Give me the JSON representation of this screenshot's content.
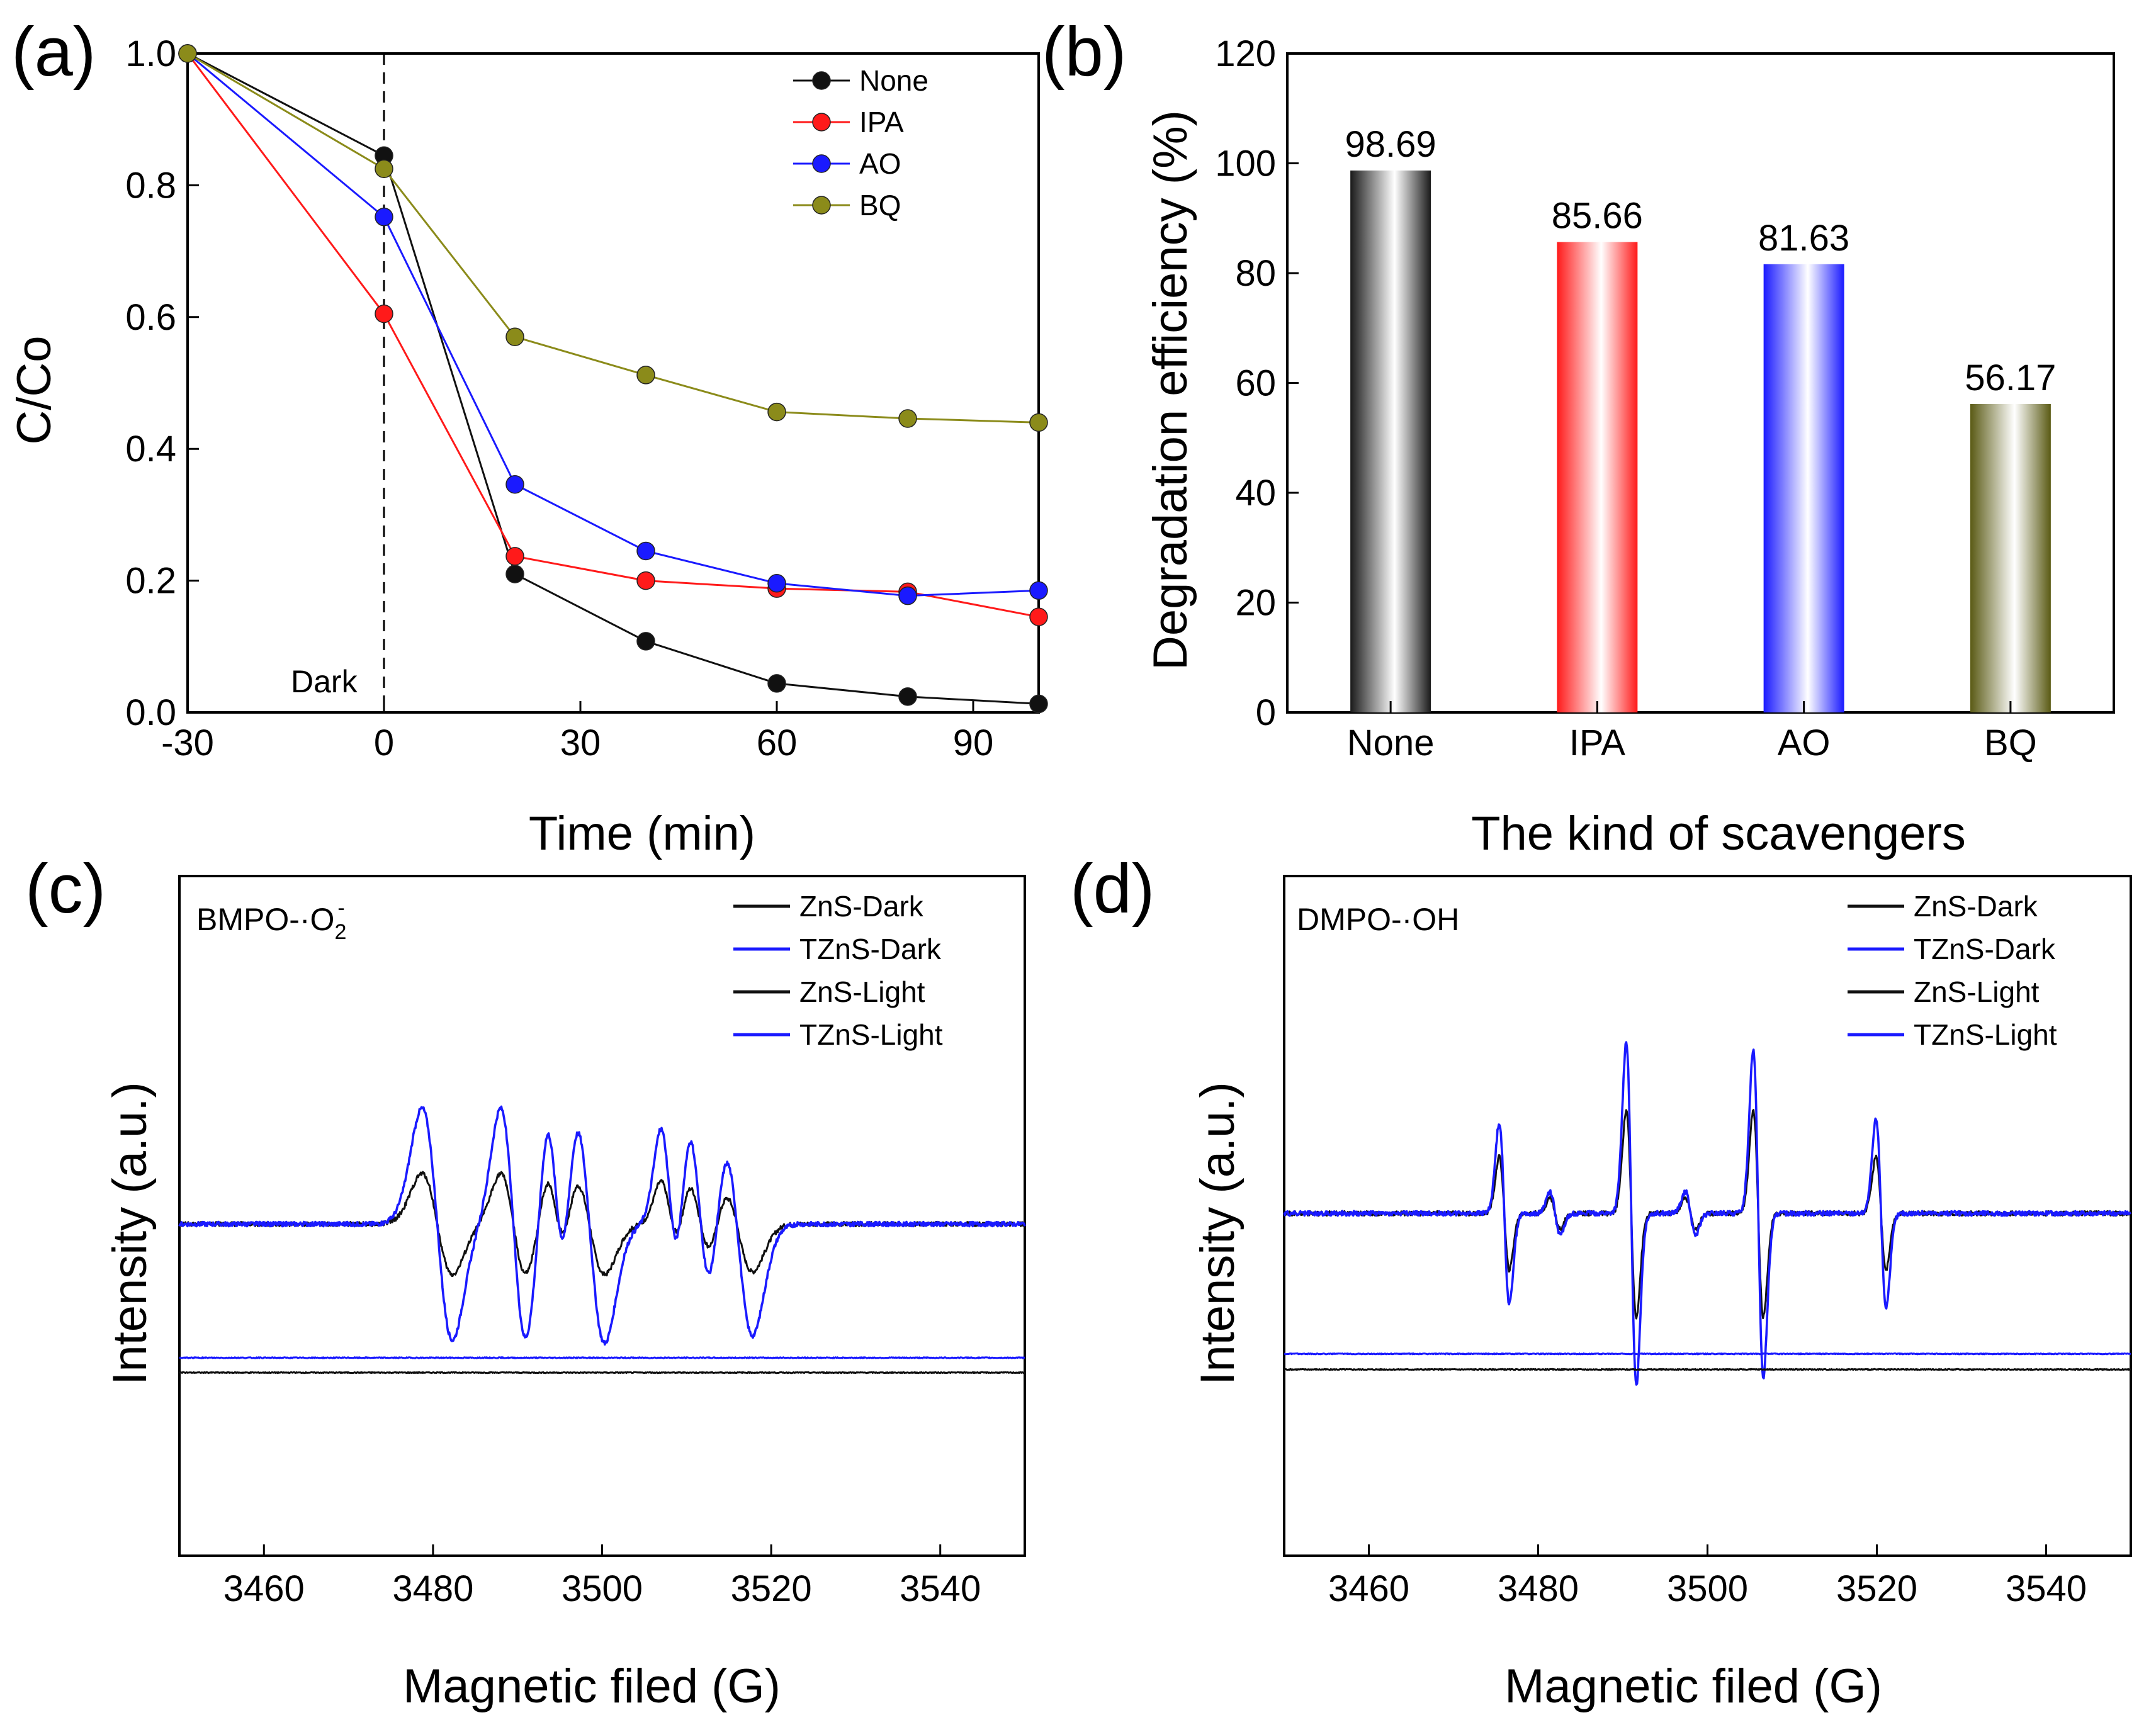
{
  "chart_data": [
    {
      "id": "a",
      "panel_label": "(a)",
      "type": "line",
      "xlabel": "Time (min)",
      "ylabel": "C/Co",
      "xlim": [
        -30,
        100
      ],
      "ylim": [
        0.0,
        1.0
      ],
      "xticks": [
        -30,
        0,
        30,
        60,
        90
      ],
      "xtick_labels": [
        "-30",
        "0",
        "30",
        "60",
        "90"
      ],
      "yticks": [
        0.0,
        0.2,
        0.4,
        0.6,
        0.8,
        1.0
      ],
      "ytick_labels": [
        "0.0",
        "0.2",
        "0.4",
        "0.6",
        "0.8",
        "1.0"
      ],
      "annotation": {
        "text": "Dark",
        "x": 0
      },
      "x": [
        -30,
        0,
        20,
        40,
        60,
        80,
        100
      ],
      "series": [
        {
          "name": "None",
          "color": "#111111",
          "values": [
            1.0,
            0.845,
            0.21,
            0.108,
            0.044,
            0.024,
            0.013
          ]
        },
        {
          "name": "IPA",
          "color": "#ff1a1a",
          "values": [
            1.0,
            0.605,
            0.237,
            0.2,
            0.188,
            0.183,
            0.145
          ]
        },
        {
          "name": "AO",
          "color": "#1a1aff",
          "values": [
            1.0,
            0.752,
            0.346,
            0.245,
            0.196,
            0.177,
            0.185
          ]
        },
        {
          "name": "BQ",
          "color": "#8b8b1a",
          "values": [
            1.0,
            0.825,
            0.57,
            0.512,
            0.456,
            0.446,
            0.44
          ]
        }
      ]
    },
    {
      "id": "b",
      "panel_label": "(b)",
      "type": "bar",
      "xlabel": "The kind of scavengers",
      "ylabel": "Degradation efficiency (%)",
      "ylim": [
        0,
        120
      ],
      "yticks": [
        0,
        20,
        40,
        60,
        80,
        100,
        120
      ],
      "ytick_labels": [
        "0",
        "20",
        "40",
        "60",
        "80",
        "100",
        "120"
      ],
      "categories": [
        "None",
        "IPA",
        "AO",
        "BQ"
      ],
      "values": [
        98.69,
        85.66,
        81.63,
        56.17
      ],
      "value_labels": [
        "98.69",
        "85.66",
        "81.63",
        "56.17"
      ],
      "colors": [
        "#1a1a1a",
        "#ff1a1a",
        "#1a1aff",
        "#5a5a14"
      ]
    },
    {
      "id": "c",
      "panel_label": "(c)",
      "type": "line",
      "xlabel": "Magnetic filed (G)",
      "ylabel": "Intensity (a.u.)",
      "xlim": [
        3450,
        3550
      ],
      "xticks": [
        3460,
        3480,
        3500,
        3520,
        3540
      ],
      "xtick_labels": [
        "3460",
        "3480",
        "3500",
        "3520",
        "3540"
      ],
      "note": {
        "main": "BMPO-·O",
        "sub": "2",
        "sup": "-"
      },
      "spin_adduct": "BMPO-O2",
      "series": [
        {
          "name": "ZnS-Dark",
          "color": "#111111",
          "baseline": -1.0,
          "peaks": []
        },
        {
          "name": "TZnS-Dark",
          "color": "#1a1aff",
          "baseline": -0.9,
          "peaks": []
        },
        {
          "name": "ZnS-Light",
          "color": "#111111",
          "baseline": 0.0,
          "peaks": [
            {
              "center": 3480.5,
              "amplitude": 0.34,
              "width": 1.8
            },
            {
              "center": 3489.5,
              "amplitude": 0.34,
              "width": 1.5
            },
            {
              "center": 3494.5,
              "amplitude": 0.28,
              "width": 1.1
            },
            {
              "center": 3498.5,
              "amplitude": 0.34,
              "width": 1.8
            },
            {
              "center": 3508.0,
              "amplitude": 0.27,
              "width": 1.1
            },
            {
              "center": 3511.5,
              "amplitude": 0.34,
              "width": 1.5
            },
            {
              "center": 3516.0,
              "amplitude": 0.32,
              "width": 1.8
            }
          ]
        },
        {
          "name": "TZnS-Light",
          "color": "#1a1aff",
          "baseline": 0.0,
          "peaks": [
            {
              "center": 3480.5,
              "amplitude": 0.78,
              "width": 1.8
            },
            {
              "center": 3489.5,
              "amplitude": 0.78,
              "width": 1.5
            },
            {
              "center": 3494.5,
              "amplitude": 0.62,
              "width": 1.1
            },
            {
              "center": 3498.5,
              "amplitude": 0.8,
              "width": 1.8
            },
            {
              "center": 3508.0,
              "amplitude": 0.6,
              "width": 1.1
            },
            {
              "center": 3511.5,
              "amplitude": 0.78,
              "width": 1.5
            },
            {
              "center": 3516.0,
              "amplitude": 0.75,
              "width": 1.8
            }
          ]
        }
      ]
    },
    {
      "id": "d",
      "panel_label": "(d)",
      "type": "line",
      "xlabel": "Magnetic filed (G)",
      "ylabel": "Intensity (a.u.)",
      "xlim": [
        3450,
        3550
      ],
      "xticks": [
        3460,
        3480,
        3500,
        3520,
        3540
      ],
      "xtick_labels": [
        "3460",
        "3480",
        "3500",
        "3520",
        "3540"
      ],
      "note": {
        "main": "DMPO-·OH",
        "sub": "",
        "sup": ""
      },
      "spin_adduct": "DMPO-OH",
      "series": [
        {
          "name": "ZnS-Dark",
          "color": "#111111",
          "baseline": -1.0,
          "peaks": []
        },
        {
          "name": "TZnS-Dark",
          "color": "#1a1aff",
          "baseline": -0.9,
          "peaks": []
        },
        {
          "name": "ZnS-Light",
          "color": "#111111",
          "baseline": 0.0,
          "peaks": [
            {
              "center": 3476.0,
              "amplitude": 0.36,
              "width": 0.6
            },
            {
              "center": 3482.0,
              "amplitude": 0.1,
              "width": 0.6
            },
            {
              "center": 3491.0,
              "amplitude": 0.66,
              "width": 0.6
            },
            {
              "center": 3498.0,
              "amplitude": 0.1,
              "width": 0.6
            },
            {
              "center": 3506.0,
              "amplitude": 0.66,
              "width": 0.6
            },
            {
              "center": 3520.5,
              "amplitude": 0.36,
              "width": 0.6
            }
          ]
        },
        {
          "name": "TZnS-Light",
          "color": "#1a1aff",
          "baseline": 0.0,
          "peaks": [
            {
              "center": 3476.0,
              "amplitude": 0.58,
              "width": 0.6
            },
            {
              "center": 3482.0,
              "amplitude": 0.14,
              "width": 0.6
            },
            {
              "center": 3491.0,
              "amplitude": 1.1,
              "width": 0.6
            },
            {
              "center": 3498.0,
              "amplitude": 0.14,
              "width": 0.6
            },
            {
              "center": 3506.0,
              "amplitude": 1.05,
              "width": 0.6
            },
            {
              "center": 3520.5,
              "amplitude": 0.6,
              "width": 0.6
            }
          ]
        }
      ]
    }
  ]
}
